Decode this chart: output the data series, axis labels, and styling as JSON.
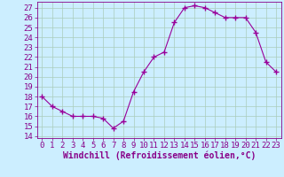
{
  "x": [
    0,
    1,
    2,
    3,
    4,
    5,
    6,
    7,
    8,
    9,
    10,
    11,
    12,
    13,
    14,
    15,
    16,
    17,
    18,
    19,
    20,
    21,
    22,
    23
  ],
  "y": [
    18.0,
    17.0,
    16.5,
    16.0,
    16.0,
    16.0,
    15.8,
    14.8,
    15.5,
    18.5,
    20.5,
    22.0,
    22.5,
    25.5,
    27.0,
    27.2,
    27.0,
    26.5,
    26.0,
    26.0,
    26.0,
    24.5,
    21.5,
    20.5
  ],
  "line_color": "#990099",
  "marker": "+",
  "marker_size": 4,
  "line_width": 0.8,
  "xlabel": "Windchill (Refroidissement éolien,°C)",
  "xlim": [
    -0.5,
    23.5
  ],
  "ylim": [
    13.8,
    27.6
  ],
  "yticks": [
    14,
    15,
    16,
    17,
    18,
    19,
    20,
    21,
    22,
    23,
    24,
    25,
    26,
    27
  ],
  "xticks": [
    0,
    1,
    2,
    3,
    4,
    5,
    6,
    7,
    8,
    9,
    10,
    11,
    12,
    13,
    14,
    15,
    16,
    17,
    18,
    19,
    20,
    21,
    22,
    23
  ],
  "bg_color": "#cceeff",
  "grid_color": "#aaccbb",
  "text_color": "#880088",
  "font_size": 6.5,
  "xlabel_size": 7,
  "spine_color": "#880088"
}
